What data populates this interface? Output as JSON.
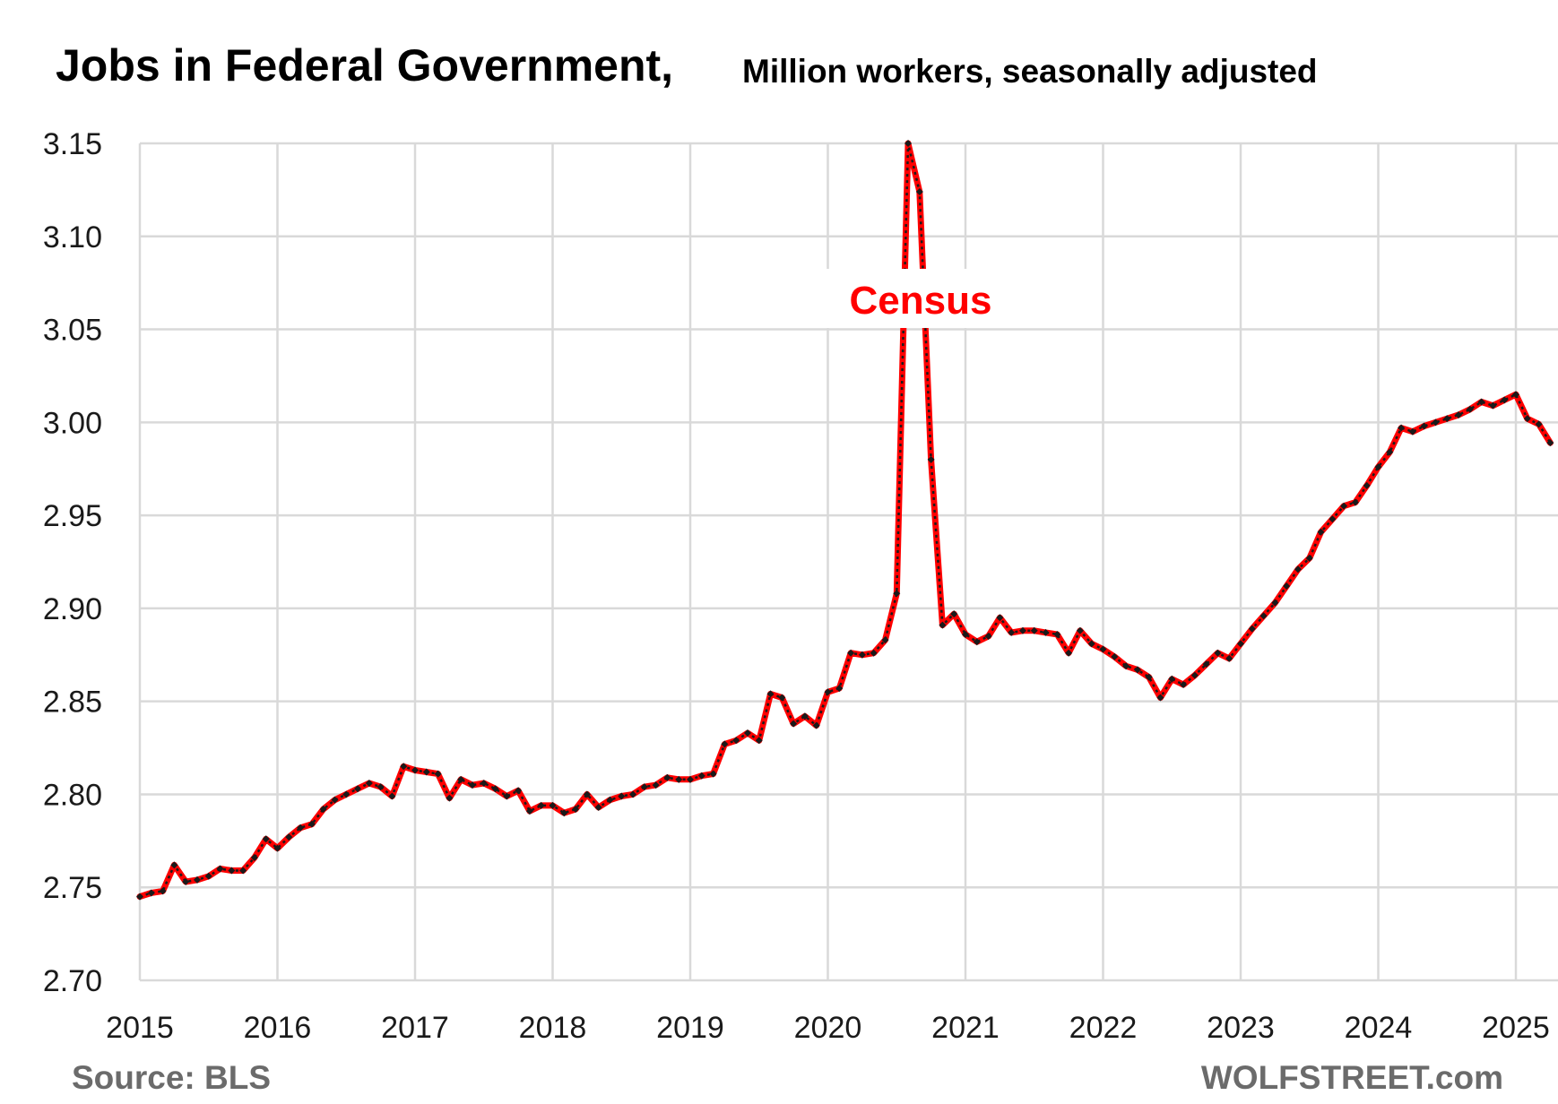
{
  "chart_data": {
    "type": "line",
    "title": "Jobs in Federal Government,",
    "subtitle": "Million workers, seasonally adjusted",
    "xlabel": "",
    "ylabel": "",
    "xlim": [
      "2015-01",
      "2025-04"
    ],
    "ylim": [
      2.7,
      3.15
    ],
    "y_ticks": [
      "2.70",
      "2.75",
      "2.80",
      "2.85",
      "2.90",
      "2.95",
      "3.00",
      "3.05",
      "3.10",
      "3.15"
    ],
    "x_ticks": [
      "2015",
      "2016",
      "2017",
      "2018",
      "2019",
      "2020",
      "2021",
      "2022",
      "2023",
      "2024",
      "2025"
    ],
    "grid": true,
    "line_color": "#ff0000",
    "marker_color": "#1a1a1a",
    "annotation": "Census",
    "source": "Source: BLS",
    "watermark": "WOLFSTREET.com",
    "series": [
      {
        "x": [
          "2015-01",
          "2015-02",
          "2015-03",
          "2015-04",
          "2015-05",
          "2015-06",
          "2015-07",
          "2015-08",
          "2015-09",
          "2015-10",
          "2015-11",
          "2015-12",
          "2016-01",
          "2016-02",
          "2016-03",
          "2016-04",
          "2016-05",
          "2016-06",
          "2016-07",
          "2016-08",
          "2016-09",
          "2016-10",
          "2016-11",
          "2016-12",
          "2017-01",
          "2017-02",
          "2017-03",
          "2017-04",
          "2017-05",
          "2017-06",
          "2017-07",
          "2017-08",
          "2017-09",
          "2017-10",
          "2017-11",
          "2017-12",
          "2018-01",
          "2018-02",
          "2018-03",
          "2018-04",
          "2018-05",
          "2018-06",
          "2018-07",
          "2018-08",
          "2018-09",
          "2018-10",
          "2018-11",
          "2018-12",
          "2019-01",
          "2019-02",
          "2019-03",
          "2019-04",
          "2019-05",
          "2019-06",
          "2019-07",
          "2019-08",
          "2019-09",
          "2019-10",
          "2019-11",
          "2019-12",
          "2020-01",
          "2020-02",
          "2020-03",
          "2020-04",
          "2020-05",
          "2020-06",
          "2020-07",
          "2020-08",
          "2020-09",
          "2020-10",
          "2020-11",
          "2020-12",
          "2021-01",
          "2021-02",
          "2021-03",
          "2021-04",
          "2021-05",
          "2021-06",
          "2021-07",
          "2021-08",
          "2021-09",
          "2021-10",
          "2021-11",
          "2021-12",
          "2022-01",
          "2022-02",
          "2022-03",
          "2022-04",
          "2022-05",
          "2022-06",
          "2022-07",
          "2022-08",
          "2022-09",
          "2022-10",
          "2022-11",
          "2022-12",
          "2023-01",
          "2023-02",
          "2023-03",
          "2023-04",
          "2023-05",
          "2023-06",
          "2023-07",
          "2023-08",
          "2023-09",
          "2023-10",
          "2023-11",
          "2023-12",
          "2024-01",
          "2024-02",
          "2024-03",
          "2024-04",
          "2024-05",
          "2024-06",
          "2024-07",
          "2024-08",
          "2024-09",
          "2024-10",
          "2024-11",
          "2024-12",
          "2025-01",
          "2025-02",
          "2025-03",
          "2025-04"
        ],
        "y": [
          2.745,
          2.747,
          2.748,
          2.762,
          2.753,
          2.754,
          2.756,
          2.76,
          2.759,
          2.759,
          2.766,
          2.776,
          2.771,
          2.777,
          2.782,
          2.784,
          2.792,
          2.797,
          2.8,
          2.803,
          2.806,
          2.804,
          2.799,
          2.815,
          2.813,
          2.812,
          2.811,
          2.798,
          2.808,
          2.805,
          2.806,
          2.803,
          2.799,
          2.802,
          2.791,
          2.794,
          2.794,
          2.79,
          2.792,
          2.8,
          2.793,
          2.797,
          2.799,
          2.8,
          2.804,
          2.805,
          2.809,
          2.808,
          2.808,
          2.81,
          2.811,
          2.827,
          2.829,
          2.833,
          2.829,
          2.854,
          2.852,
          2.838,
          2.842,
          2.837,
          2.855,
          2.857,
          2.876,
          2.875,
          2.876,
          2.883,
          2.908,
          3.15,
          3.124,
          2.98,
          2.891,
          2.897,
          2.886,
          2.882,
          2.885,
          2.895,
          2.887,
          2.888,
          2.888,
          2.887,
          2.886,
          2.876,
          2.888,
          2.881,
          2.878,
          2.874,
          2.869,
          2.867,
          2.863,
          2.852,
          2.862,
          2.859,
          2.864,
          2.87,
          2.876,
          2.873,
          2.881,
          2.889,
          2.896,
          2.903,
          2.912,
          2.921,
          2.927,
          2.941,
          2.948,
          2.955,
          2.957,
          2.966,
          2.976,
          2.984,
          2.997,
          2.995,
          2.998,
          3.0,
          3.002,
          3.004,
          3.007,
          3.011,
          3.009,
          3.012,
          3.015,
          3.002,
          2.999,
          2.989
        ]
      }
    ]
  }
}
